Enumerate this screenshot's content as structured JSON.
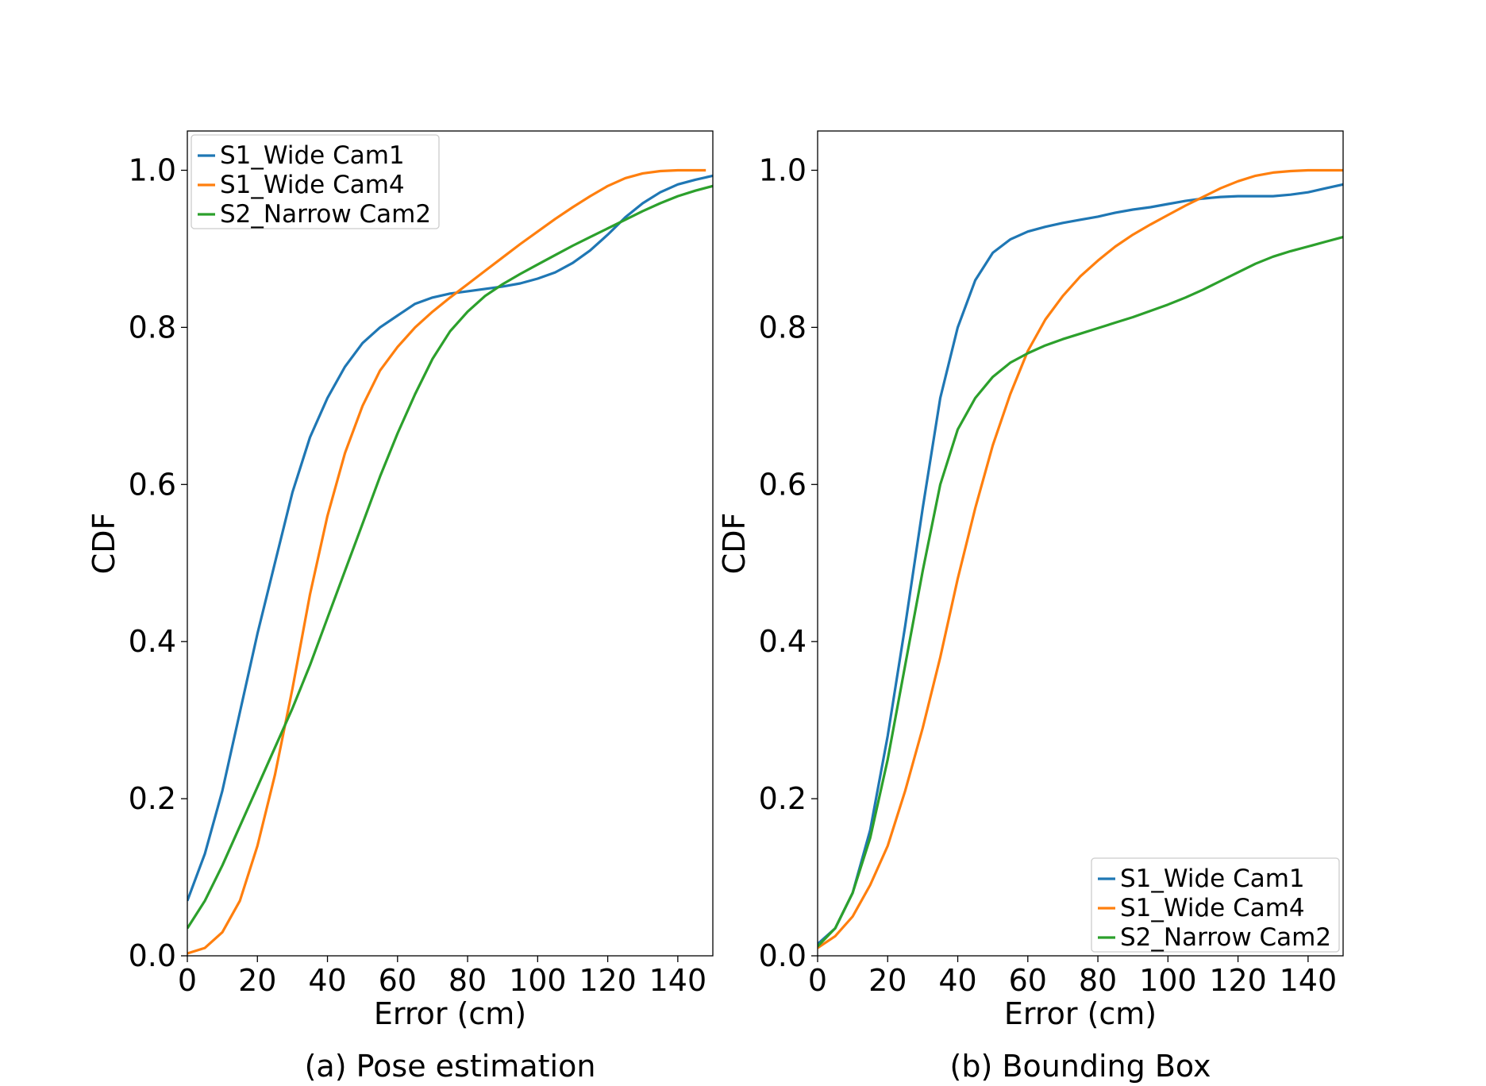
{
  "chart_data": [
    {
      "type": "line",
      "caption": "(a) Pose estimation",
      "xlabel": "Error (cm)",
      "ylabel": "CDF",
      "xlim": [
        0,
        150
      ],
      "ylim": [
        0,
        1.05
      ],
      "xticks": [
        "0",
        "20",
        "40",
        "60",
        "80",
        "100",
        "120",
        "140"
      ],
      "yticks": [
        "0.0",
        "0.2",
        "0.4",
        "0.6",
        "0.8",
        "1.0"
      ],
      "legend_position": "upper-left",
      "series": [
        {
          "name": "S1_Wide Cam1",
          "color": "#1f77b4",
          "x": [
            0,
            5,
            10,
            15,
            20,
            25,
            30,
            35,
            40,
            45,
            50,
            55,
            60,
            65,
            70,
            75,
            80,
            85,
            90,
            95,
            100,
            105,
            110,
            115,
            120,
            125,
            130,
            135,
            140,
            145,
            150
          ],
          "y": [
            0.07,
            0.13,
            0.21,
            0.31,
            0.41,
            0.5,
            0.59,
            0.66,
            0.71,
            0.75,
            0.78,
            0.8,
            0.815,
            0.83,
            0.838,
            0.843,
            0.846,
            0.849,
            0.852,
            0.856,
            0.862,
            0.87,
            0.882,
            0.898,
            0.918,
            0.94,
            0.958,
            0.972,
            0.982,
            0.988,
            0.993
          ]
        },
        {
          "name": "S1_Wide Cam4",
          "color": "#ff7f0e",
          "x": [
            0,
            5,
            10,
            15,
            20,
            25,
            30,
            35,
            40,
            45,
            50,
            55,
            60,
            65,
            70,
            75,
            80,
            85,
            90,
            95,
            100,
            105,
            110,
            115,
            120,
            125,
            130,
            135,
            140,
            145,
            148
          ],
          "y": [
            0.003,
            0.01,
            0.03,
            0.07,
            0.14,
            0.23,
            0.34,
            0.46,
            0.56,
            0.64,
            0.7,
            0.745,
            0.775,
            0.8,
            0.82,
            0.838,
            0.855,
            0.872,
            0.889,
            0.906,
            0.922,
            0.938,
            0.953,
            0.967,
            0.98,
            0.99,
            0.996,
            0.999,
            1.0,
            1.0,
            1.0
          ]
        },
        {
          "name": "S2_Narrow Cam2",
          "color": "#2ca02c",
          "x": [
            0,
            5,
            10,
            15,
            20,
            25,
            30,
            35,
            40,
            45,
            50,
            55,
            60,
            65,
            70,
            75,
            80,
            85,
            90,
            95,
            100,
            105,
            110,
            115,
            120,
            125,
            130,
            135,
            140,
            145,
            150
          ],
          "y": [
            0.035,
            0.07,
            0.115,
            0.165,
            0.215,
            0.265,
            0.315,
            0.37,
            0.43,
            0.49,
            0.55,
            0.61,
            0.665,
            0.715,
            0.76,
            0.795,
            0.82,
            0.84,
            0.855,
            0.868,
            0.88,
            0.892,
            0.904,
            0.915,
            0.926,
            0.937,
            0.948,
            0.958,
            0.967,
            0.974,
            0.98
          ]
        }
      ]
    },
    {
      "type": "line",
      "caption": "(b) Bounding Box",
      "xlabel": "Error (cm)",
      "ylabel": "CDF",
      "xlim": [
        0,
        150
      ],
      "ylim": [
        0,
        1.05
      ],
      "xticks": [
        "0",
        "20",
        "40",
        "60",
        "80",
        "100",
        "120",
        "140"
      ],
      "yticks": [
        "0.0",
        "0.2",
        "0.4",
        "0.6",
        "0.8",
        "1.0"
      ],
      "legend_position": "lower-right",
      "series": [
        {
          "name": "S1_Wide Cam1",
          "color": "#1f77b4",
          "x": [
            0,
            5,
            10,
            15,
            20,
            25,
            30,
            35,
            40,
            45,
            50,
            55,
            60,
            65,
            70,
            75,
            80,
            85,
            90,
            95,
            100,
            105,
            110,
            115,
            120,
            125,
            130,
            135,
            140,
            145,
            150
          ],
          "y": [
            0.015,
            0.035,
            0.08,
            0.16,
            0.28,
            0.42,
            0.57,
            0.71,
            0.8,
            0.86,
            0.895,
            0.912,
            0.922,
            0.928,
            0.933,
            0.937,
            0.941,
            0.946,
            0.95,
            0.953,
            0.957,
            0.961,
            0.964,
            0.966,
            0.967,
            0.967,
            0.967,
            0.969,
            0.972,
            0.977,
            0.982
          ]
        },
        {
          "name": "S1_Wide Cam4",
          "color": "#ff7f0e",
          "x": [
            0,
            5,
            10,
            15,
            20,
            25,
            30,
            35,
            40,
            45,
            50,
            55,
            60,
            65,
            70,
            75,
            80,
            85,
            90,
            95,
            100,
            105,
            110,
            115,
            120,
            125,
            130,
            135,
            140,
            145,
            150
          ],
          "y": [
            0.01,
            0.025,
            0.05,
            0.09,
            0.14,
            0.21,
            0.29,
            0.38,
            0.48,
            0.57,
            0.65,
            0.715,
            0.77,
            0.81,
            0.84,
            0.865,
            0.885,
            0.903,
            0.918,
            0.931,
            0.943,
            0.955,
            0.966,
            0.977,
            0.986,
            0.993,
            0.997,
            0.999,
            1.0,
            1.0,
            1.0
          ]
        },
        {
          "name": "S2_Narrow Cam2",
          "color": "#2ca02c",
          "x": [
            0,
            5,
            10,
            15,
            20,
            25,
            30,
            35,
            40,
            45,
            50,
            55,
            60,
            65,
            70,
            75,
            80,
            85,
            90,
            95,
            100,
            105,
            110,
            115,
            120,
            125,
            130,
            135,
            140,
            145,
            150
          ],
          "y": [
            0.012,
            0.035,
            0.08,
            0.15,
            0.25,
            0.37,
            0.49,
            0.6,
            0.67,
            0.71,
            0.737,
            0.755,
            0.767,
            0.777,
            0.785,
            0.792,
            0.799,
            0.806,
            0.813,
            0.821,
            0.829,
            0.838,
            0.848,
            0.859,
            0.87,
            0.881,
            0.89,
            0.897,
            0.903,
            0.909,
            0.915
          ]
        }
      ]
    }
  ]
}
